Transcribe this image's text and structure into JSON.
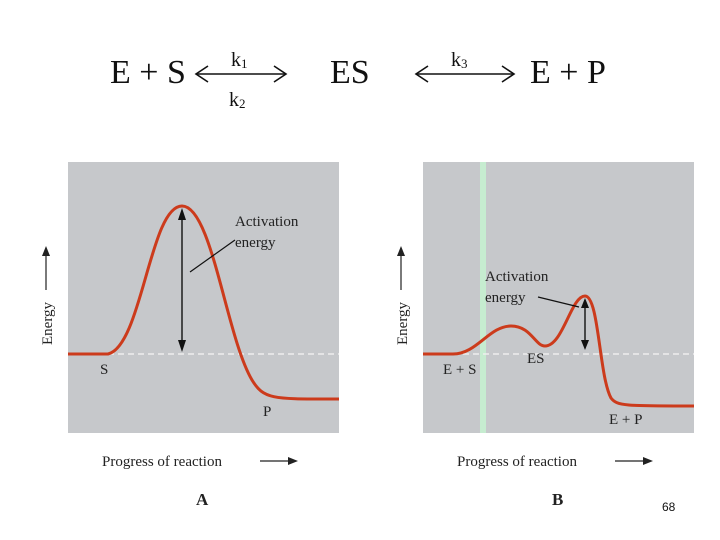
{
  "equation": {
    "left": "E + S",
    "middle": "ES",
    "right": "E + P",
    "k1_letter": "k",
    "k1_sub": "1",
    "k2_letter": "k",
    "k2_sub": "2",
    "k3_letter": "k",
    "k3_sub": "3"
  },
  "panel_a": {
    "y_axis_label": "Energy",
    "x_axis_label": "Progress of reaction",
    "annotation_line1": "Activation",
    "annotation_line2": "energy",
    "start_label": "S",
    "end_label": "P",
    "caption": "A"
  },
  "panel_b": {
    "y_axis_label": "Energy",
    "x_axis_label": "Progress of reaction",
    "annotation_line1": "Activation",
    "annotation_line2": "energy",
    "start_label": "E + S",
    "intermediate_label": "ES",
    "end_label": "E + P",
    "caption": "B"
  },
  "slide_number": "68",
  "colors": {
    "panel_bg": "#c6c8cb",
    "curve": "#cc3b1c",
    "dashed": "#eeeeee",
    "green_line": "#c6ecd0"
  }
}
